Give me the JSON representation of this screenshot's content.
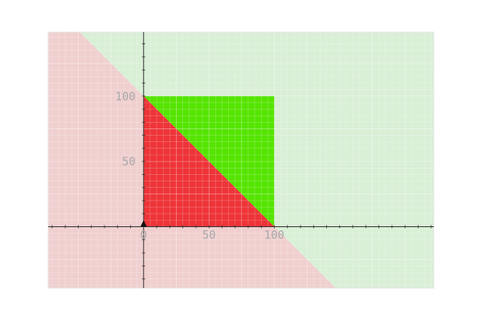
{
  "chart_data": {
    "type": "area",
    "title": "",
    "xlabel": "",
    "ylabel": "",
    "xlim": [
      -73,
      222
    ],
    "ylim": [
      -47,
      149
    ],
    "grid": true,
    "x_ticks": [
      {
        "value": 0,
        "label": "0"
      },
      {
        "value": 50,
        "label": "50"
      },
      {
        "value": 100,
        "label": "100"
      }
    ],
    "y_ticks": [
      {
        "value": 50,
        "label": "50"
      },
      {
        "value": 100,
        "label": "100"
      }
    ],
    "boundary_line": {
      "x": [
        -73,
        222
      ],
      "y": [
        173,
        -122
      ],
      "equation": "x + y = 100"
    },
    "regions": [
      {
        "name": "above-line-background",
        "role": "background",
        "color": "#d9efd6",
        "polygon": [
          [
            -73,
            149
          ],
          [
            222,
            149
          ],
          [
            222,
            -47
          ],
          [
            147,
            -47
          ],
          [
            -49,
            149
          ]
        ]
      },
      {
        "name": "below-line-background",
        "role": "background",
        "color": "#f0cfcf",
        "polygon": [
          [
            -73,
            149
          ],
          [
            -49,
            149
          ],
          [
            147,
            -47
          ],
          [
            -73,
            -47
          ]
        ]
      },
      {
        "name": "green-region",
        "role": "feasible",
        "color": "#55e400",
        "polygon": [
          [
            0,
            100
          ],
          [
            100,
            100
          ],
          [
            100,
            0
          ]
        ]
      },
      {
        "name": "red-region",
        "role": "feasible",
        "color": "#ee3438",
        "polygon": [
          [
            0,
            0
          ],
          [
            0,
            100
          ],
          [
            100,
            0
          ]
        ]
      }
    ]
  },
  "colors": {
    "grid_minor": "#ffffff",
    "axis": "#333333",
    "tick_label": "#a8a8a8",
    "frame": "#e6e6e6"
  }
}
